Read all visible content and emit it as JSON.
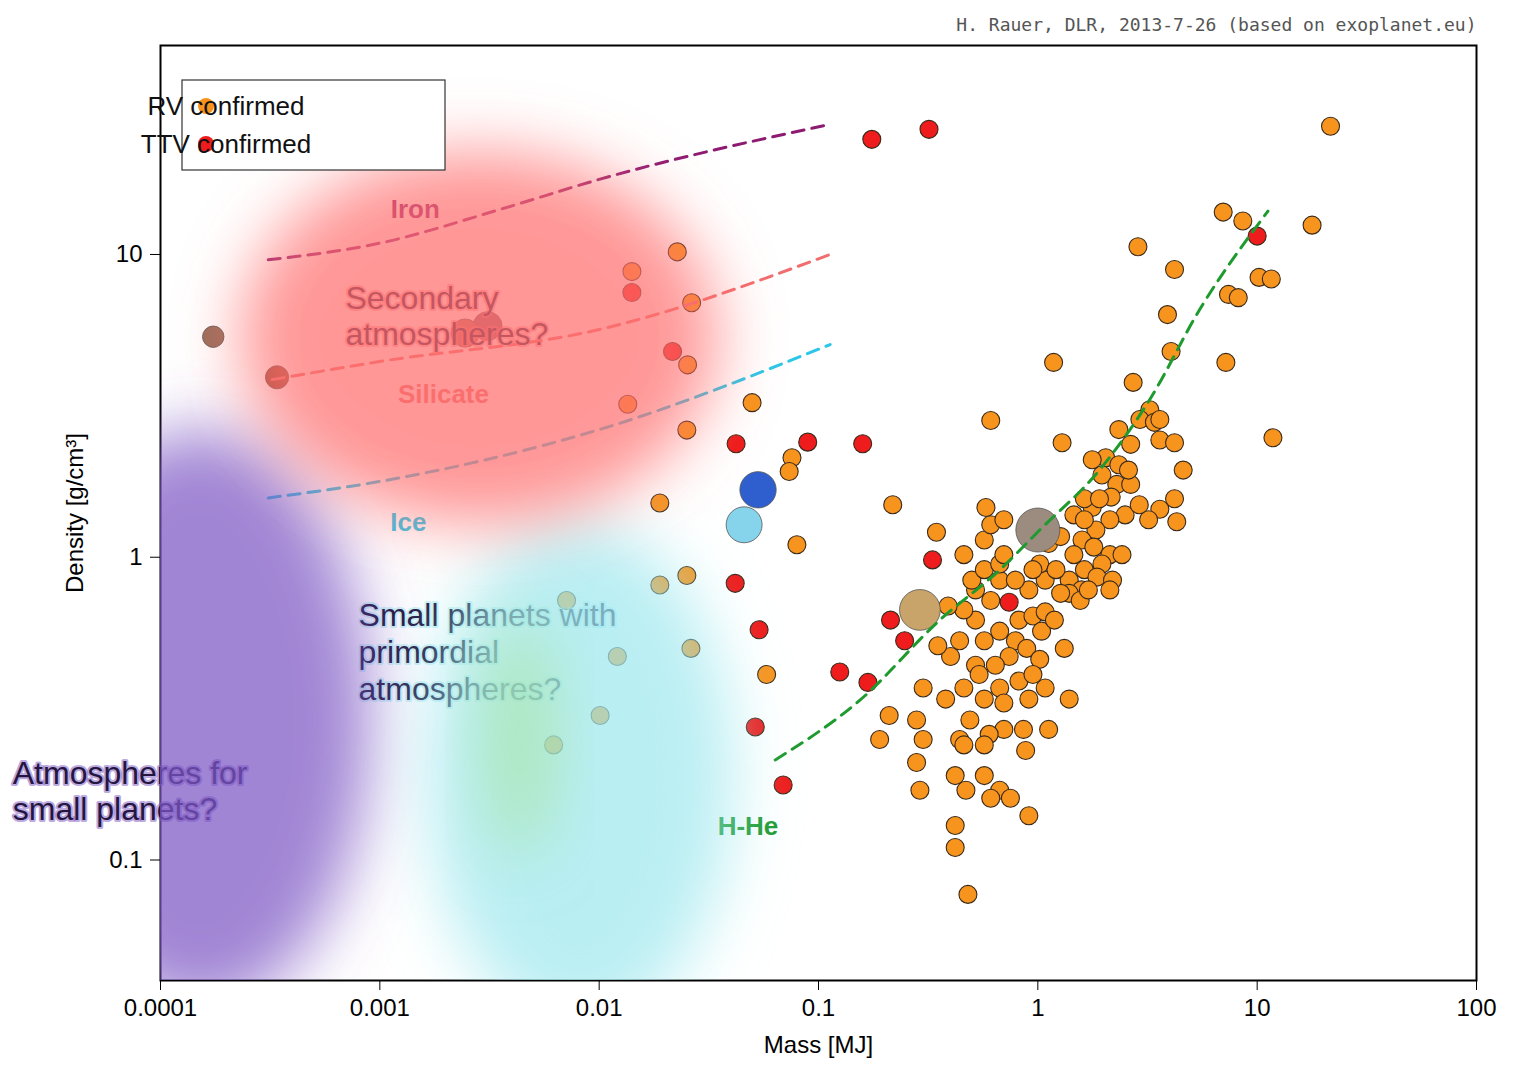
{
  "chart_data": {
    "type": "scatter",
    "subtitle": "H. Rauer, DLR, 2013-7-26 (based on exoplanet.eu)",
    "x_label": "Mass [MJ]",
    "y_label": "Density [g/cm³]",
    "log": true,
    "xlim": [
      0.0001,
      100
    ],
    "ylim": [
      0.04,
      49
    ],
    "xticks": [
      0.0001,
      0.001,
      0.01,
      0.1,
      1,
      10,
      100
    ],
    "yticks": [
      0.1,
      1,
      10
    ],
    "legend": "top-left",
    "marker": "circle",
    "series": [
      {
        "name": "RV confirmed",
        "color": "#f7941d",
        "x": [
          0.0141,
          0.0227,
          0.0264,
          0.0253,
          0.0498,
          0.0757,
          0.0735,
          0.0797,
          0.058,
          0.0135,
          0.0251,
          0.0189,
          0.0189,
          0.0251,
          0.0121,
          0.0262,
          0.0101,
          0.0062,
          0.0071,
          2.86,
          4.2,
          3.9,
          4.05,
          7.0,
          8.6,
          17.8,
          21.6,
          7.4,
          8.2,
          10.2,
          11.6,
          7.2,
          11.8,
          1.18,
          2.72,
          0.61,
          1.29,
          0.218,
          0.345,
          3.24,
          2.92,
          2.34,
          3.4,
          2.04,
          2.34,
          1.96,
          2.29,
          2.16,
          1.77,
          2.5,
          2.13,
          1.84,
          1.59,
          1.8,
          2.13,
          1.96,
          1.63,
          1.39,
          1.86,
          2.19,
          1.58,
          1.39,
          1.08,
          1.27,
          1.02,
          1.12,
          0.91,
          0.82,
          0.95,
          1.04,
          0.79,
          0.89,
          1.32,
          1.02,
          0.74,
          0.64,
          0.82,
          0.67,
          0.57,
          0.7,
          0.91,
          1.39,
          1.12,
          0.88,
          0.7,
          0.6,
          0.49,
          0.46,
          0.52,
          0.44,
          0.52,
          0.61,
          0.67,
          0.52,
          0.46,
          0.57,
          0.54,
          0.44,
          0.57,
          0.46,
          0.42,
          0.57,
          0.67,
          0.75,
          0.91,
          0.47,
          0.42,
          0.42,
          0.48,
          0.29,
          0.28,
          0.3,
          0.28,
          0.38,
          0.3,
          0.21,
          0.19,
          0.4,
          0.35,
          0.39,
          0.5,
          0.46,
          0.57,
          0.67,
          0.57,
          0.61,
          0.58,
          0.7,
          0.7,
          0.79,
          1.08,
          1.19,
          1.21,
          1.56,
          1.7,
          1.46,
          1.27,
          1.46,
          1.63,
          1.77,
          2.65,
          3.6,
          4.2,
          4.6,
          4.2,
          3.6,
          4.3,
          3.2,
          2.9,
          2.65,
          2.59,
          3.6,
          1.91,
          1.63,
          2.42,
          2.13,
          0.95,
          0.61,
          1.08,
          0.86,
          0.95,
          0.67
        ],
        "values": [
          8.78,
          10.2,
          6.93,
          4.32,
          3.24,
          2.13,
          1.92,
          1.1,
          0.41,
          3.2,
          2.63,
          1.51,
          0.81,
          0.87,
          0.47,
          0.5,
          0.3,
          0.24,
          0.72,
          10.6,
          8.92,
          6.33,
          4.78,
          13.8,
          12.9,
          12.5,
          26.5,
          7.38,
          7.2,
          8.4,
          8.3,
          4.4,
          2.48,
          4.4,
          3.78,
          2.83,
          2.39,
          1.49,
          1.21,
          3.07,
          2.85,
          2.64,
          2.79,
          2.13,
          2.02,
          1.87,
          1.74,
          1.58,
          1.46,
          1.38,
          1.33,
          1.23,
          1.14,
          1.08,
          1.02,
          0.95,
          0.91,
          0.84,
          0.86,
          0.84,
          0.78,
          0.76,
          0.84,
          0.76,
          0.95,
          1.11,
          0.78,
          0.62,
          0.64,
          0.57,
          0.53,
          0.5,
          0.5,
          0.46,
          0.47,
          0.44,
          0.39,
          0.37,
          0.34,
          0.33,
          0.34,
          0.34,
          0.27,
          0.23,
          0.27,
          0.26,
          0.29,
          0.37,
          0.44,
          0.53,
          0.62,
          0.72,
          0.84,
          0.78,
          0.67,
          0.53,
          0.41,
          0.25,
          0.24,
          0.24,
          0.19,
          0.19,
          0.17,
          0.16,
          0.14,
          0.17,
          0.13,
          0.11,
          0.077,
          0.17,
          0.21,
          0.25,
          0.29,
          0.34,
          0.37,
          0.3,
          0.25,
          0.47,
          0.51,
          0.69,
          0.84,
          1.02,
          0.91,
          0.95,
          1.14,
          1.28,
          1.46,
          1.33,
          1.02,
          0.84,
          0.66,
          0.62,
          0.91,
          0.72,
          0.78,
          1.02,
          1.17,
          1.38,
          1.56,
          2.1,
          2.36,
          2.44,
          2.39,
          1.94,
          1.56,
          1.44,
          1.31,
          1.33,
          1.49,
          1.74,
          1.94,
          2.85,
          1.56,
          1.33,
          1.02,
          0.78,
          0.91,
          0.16,
          0.37,
          0.27,
          0.41,
          0.57
        ]
      },
      {
        "name": "TTV confirmed",
        "color": "#ee1c1c",
        "x": [
          0.175,
          0.319,
          0.0141,
          0.0216,
          0.0421,
          0.0893,
          0.159,
          0.0417,
          0.0536,
          0.0515,
          0.125,
          0.168,
          0.069,
          0.331,
          0.74,
          0.213,
          0.247,
          10.0
        ],
        "values": [
          24.0,
          25.9,
          7.49,
          4.78,
          2.37,
          2.4,
          2.37,
          0.82,
          0.576,
          0.275,
          0.418,
          0.386,
          0.177,
          0.98,
          0.71,
          0.62,
          0.53,
          11.5
        ]
      }
    ],
    "solar_system": {
      "x": [
        0.000174,
        0.00034,
        0.00245,
        0.0031,
        0.053,
        0.0458,
        0.29,
        1.0
      ],
      "values": [
        5.35,
        3.93,
        5.5,
        5.8,
        1.67,
        1.28,
        0.67,
        1.23
      ],
      "colors": [
        "#9a6e5a",
        "#a0503a",
        "#b86a5a",
        "#9a5a6a",
        "#2f5fcf",
        "#86d4ec",
        "#c9a46a",
        "#9c8c80"
      ]
    },
    "lines": [
      {
        "name": "Iron",
        "color": "#8e1b72",
        "line_style": "dashed",
        "x": [
          0.00031,
          0.001,
          0.00355,
          0.01,
          0.113
        ],
        "values": [
          9.6,
          10.9,
          14.1,
          17.7,
          26.9
        ],
        "label_x": 0.00145,
        "label_y": 14.1
      },
      {
        "name": "Silicate",
        "color": "#f26d6d",
        "line_style": "dashed",
        "x": [
          0.000323,
          0.001,
          0.01,
          0.113
        ],
        "values": [
          3.86,
          4.43,
          5.65,
          10
        ],
        "label_x": 0.00195,
        "label_y": 3.44
      },
      {
        "name": "Ice",
        "color": "#2cc7e8",
        "line_style": "dashed",
        "x": [
          0.00031,
          0.001,
          0.01,
          0.113
        ],
        "values": [
          1.57,
          1.78,
          2.64,
          5.04
        ],
        "label_x": 0.00135,
        "label_y": 1.3
      },
      {
        "name": "H-He",
        "color": "#1f9a2e",
        "line_style": "dashed",
        "x": [
          0.0635,
          0.155,
          0.358,
          0.672,
          1.02,
          1.92,
          3.24,
          5.47,
          11.2
        ],
        "values": [
          0.214,
          0.338,
          0.621,
          0.91,
          1.23,
          1.95,
          3.32,
          6.58,
          13.9
        ],
        "label_x": 0.0477,
        "label_y": 0.129
      }
    ],
    "regions": [
      {
        "label": "Atmospheres for\nsmall planets?",
        "color": "#7b55c4",
        "xlim": [
          1.87e-05,
          0.00124
        ],
        "ylim": [
          0.0217,
          3.86
        ],
        "label_x": 2.12e-05,
        "label_y": 0.17
      },
      {
        "label": "Small planets with\nprimordial\natmospheres?",
        "color": "#9ee8ee",
        "xlim": [
          0.00124,
          0.054
        ],
        "ylim": [
          0.02,
          1.8
        ],
        "label_x": 0.0008,
        "label_y": 0.49
      },
      {
        "color": "#a6e3a0",
        "xlim": [
          0.00287,
          0.0066
        ],
        "ylim": [
          0.087,
          0.72
        ]
      },
      {
        "label": "Secondary\natmospheres?",
        "color": "#ff6f6f",
        "xlim": [
          0.00015,
          0.054
        ],
        "ylim": [
          1.0,
          28
        ],
        "label_x": 0.000697,
        "label_y": 6.3
      }
    ]
  }
}
